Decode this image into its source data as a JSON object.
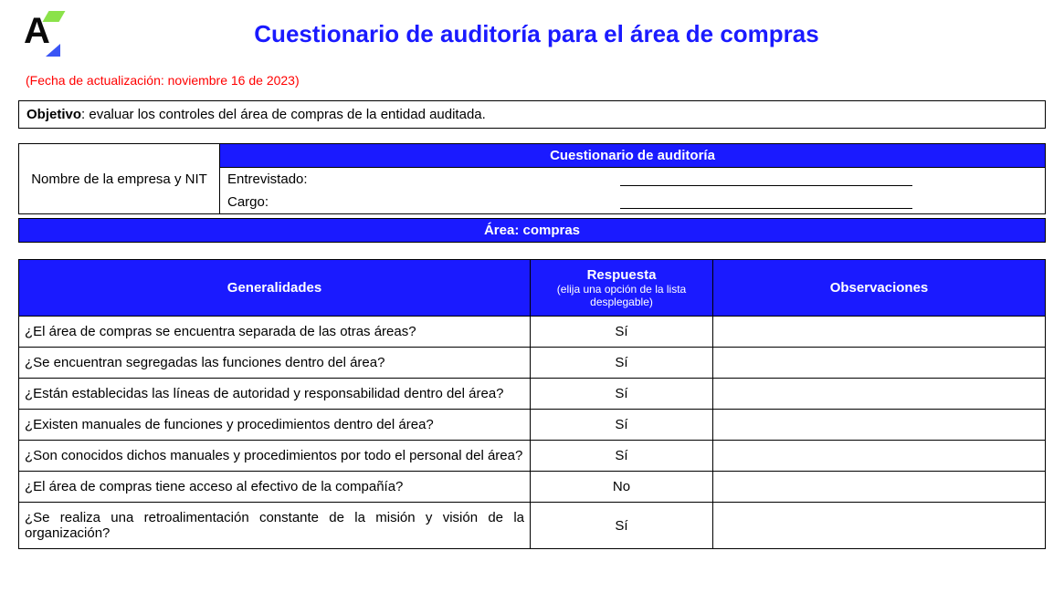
{
  "colors": {
    "primary_blue": "#1a1aff",
    "logo_green": "#8be24a",
    "logo_blue": "#3a55f5",
    "red": "#ff0000",
    "border": "#000000",
    "background": "#ffffff"
  },
  "logo_letter": "A",
  "title": "Cuestionario de auditoría para el área de compras",
  "update_date": "(Fecha de actualización: noviembre 16 de 2023)",
  "objective_label": "Objetivo",
  "objective_text": ": evaluar los controles del área de compras de la entidad auditada.",
  "meta": {
    "company_label": "Nombre de la empresa y NIT",
    "questionnaire_header": "Cuestionario de auditoría",
    "interviewee_label": "Entrevistado:",
    "position_label": "Cargo:"
  },
  "area_banner": "Área: compras",
  "table": {
    "headers": {
      "generalities": "Generalidades",
      "response": "Respuesta",
      "response_sub": "(elija una opción de la lista desplegable)",
      "observations": "Observaciones"
    },
    "rows": [
      {
        "question": "¿El área de compras se encuentra separada de las otras áreas?",
        "response": "Sí",
        "observation": "",
        "justify": false
      },
      {
        "question": "¿Se encuentran segregadas las funciones dentro del área?",
        "response": "Sí",
        "observation": "",
        "justify": false
      },
      {
        "question": "¿Están establecidas las líneas de autoridad y responsabilidad dentro del área?",
        "response": "Sí",
        "observation": "",
        "justify": false
      },
      {
        "question": "¿Existen manuales de funciones y procedimientos dentro del área?",
        "response": "Sí",
        "observation": "",
        "justify": false
      },
      {
        "question": "¿Son conocidos dichos manuales y procedimientos por todo el personal del área?",
        "response": "Sí",
        "observation": "",
        "justify": true
      },
      {
        "question": "¿El área de compras tiene acceso al efectivo de la compañía?",
        "response": "No",
        "observation": "",
        "justify": false
      },
      {
        "question": "¿Se realiza una retroalimentación constante de la misión y visión de la organización?",
        "response": "Sí",
        "observation": "",
        "justify": true
      }
    ]
  }
}
